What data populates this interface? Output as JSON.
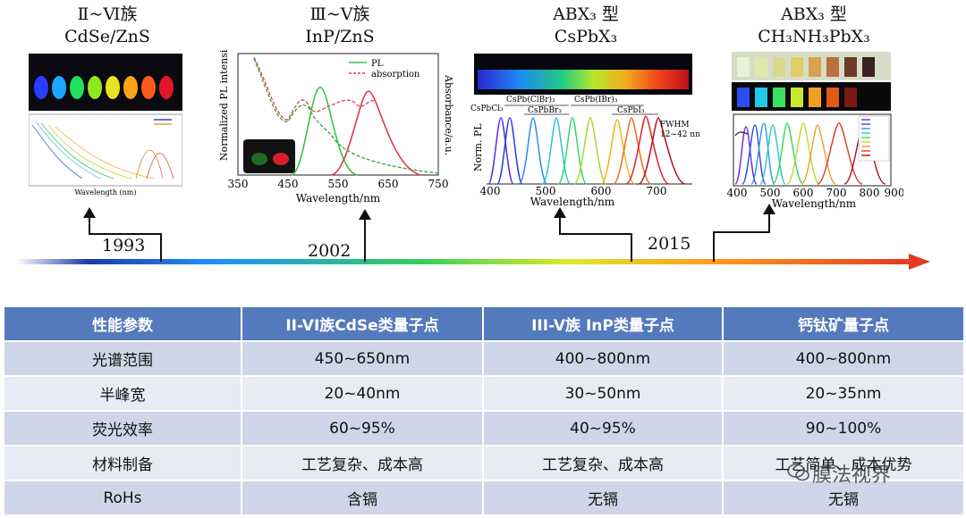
{
  "header_cols": [
    {
      "line1": "Ⅱ~Ⅵ族",
      "line2": "CdSe/ZnS"
    },
    {
      "line1": "Ⅲ~Ⅴ族",
      "line2": "InP/ZnS"
    },
    {
      "line1": "ABX₃ 型",
      "line2": "CsPbX₃"
    },
    {
      "line1": "ABX₃ 型",
      "line2": "CH₃NH₃PbX₃"
    }
  ],
  "panel1": {
    "xlabel": "Wavelength (nm)"
  },
  "panel2": {
    "ylabel_left": "Normalized PL intensity",
    "ylabel_right": "Absorbance/a.u.",
    "xlabel": "Wavelength/nm",
    "xticks": [
      "350",
      "450",
      "550",
      "650",
      "750"
    ],
    "legend": [
      "PL",
      "absorption"
    ]
  },
  "panel3": {
    "ylabel": "Norm. PL",
    "xlabel": "Wavelength/nm",
    "xticks": [
      "400",
      "500",
      "600",
      "700"
    ],
    "labels": [
      "CsPbCl₃",
      "CsPb(ClBr)₃",
      "CsPbBr₃",
      "CsPb(IBr)₃",
      "CsPbI₃"
    ],
    "fwhm_line1": "FWHM",
    "fwhm_line2": "12~42 nm"
  },
  "panel4": {
    "xlabel": "Wavelength/nm",
    "xticks": [
      "400",
      "500",
      "600",
      "700",
      "800",
      "900"
    ]
  },
  "timeline": {
    "years": [
      "1993",
      "2002",
      "2015"
    ]
  },
  "table": {
    "headers": [
      "性能参数",
      "II-VI族CdSe类量子点",
      "III-V族 InP类量子点",
      "钙钛矿量子点"
    ],
    "rows": [
      [
        "光谱范围",
        "450~650nm",
        "400~800nm",
        "400~800nm"
      ],
      [
        "半峰宽",
        "20~40nm",
        "30~50nm",
        "20~35nm"
      ],
      [
        "荧光效率",
        "60~95%",
        "40~95%",
        "90~100%"
      ],
      [
        "材料制备",
        "工艺复杂、成本高",
        "工艺复杂、成本高",
        "工艺简单、成本优势"
      ],
      [
        "RoHs",
        "含镉",
        "无镉",
        "无镉"
      ]
    ]
  },
  "watermark": "膜法视界",
  "colors": {
    "table_header": "#5579bd",
    "row_odd": "#cfd6e9",
    "row_even": "#e8ebf4",
    "arrow_end": "#e53a1f"
  }
}
